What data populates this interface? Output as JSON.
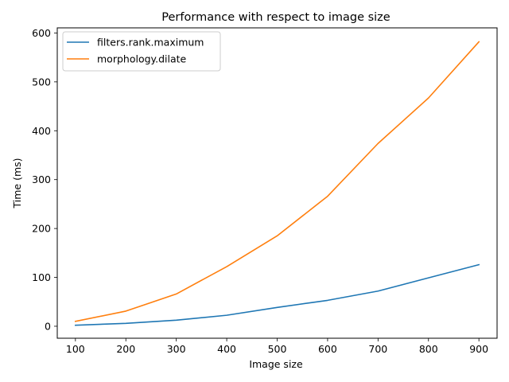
{
  "chart_data": {
    "type": "line",
    "title": "Performance with respect to image size",
    "xlabel": "Image size",
    "ylabel": "Time (ms)",
    "x": [
      100,
      200,
      300,
      400,
      500,
      600,
      700,
      800,
      900
    ],
    "xlim": [
      64,
      936
    ],
    "ylim": [
      -24.5,
      610.5
    ],
    "xticks": [
      100,
      200,
      300,
      400,
      500,
      600,
      700,
      800,
      900
    ],
    "yticks": [
      0,
      100,
      200,
      300,
      400,
      500,
      600
    ],
    "grid": false,
    "legend_position": "top-left",
    "series": [
      {
        "name": "filters.rank.maximum",
        "color": "#1f77b4",
        "values": [
          2,
          6,
          12.5,
          22.5,
          38.5,
          53,
          72,
          99,
          126
        ]
      },
      {
        "name": "morphology.dilate",
        "color": "#ff7f0e",
        "values": [
          10,
          31,
          66,
          122,
          185,
          266,
          374,
          467,
          582
        ]
      }
    ]
  }
}
